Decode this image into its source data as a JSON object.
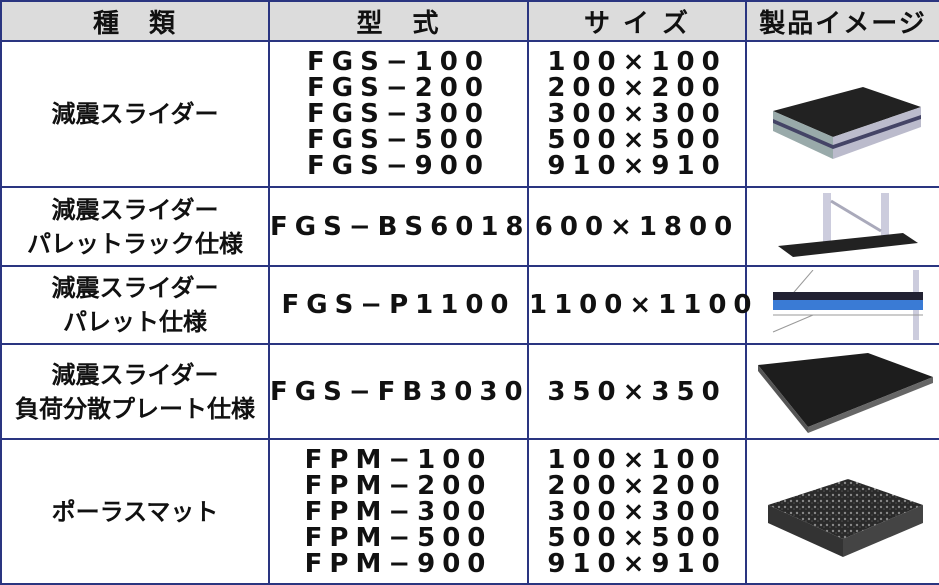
{
  "table": {
    "header": [
      "種　類",
      "型　式",
      "サ イ ズ",
      "製品イメージ"
    ],
    "rows": [
      {
        "type": [
          "減震スライダー"
        ],
        "models": [
          "FGS−100",
          "FGS−200",
          "FGS−300",
          "FGS−500",
          "FGS−900"
        ],
        "sizes": [
          "100×100",
          "200×200",
          "300×300",
          "500×500",
          "910×910"
        ]
      },
      {
        "type": [
          "減震スライダー",
          "パレットラック仕様"
        ],
        "models": [
          "FGS−BS6018"
        ],
        "sizes": [
          "600×1800"
        ]
      },
      {
        "type": [
          "減震スライダー",
          "パレット仕様"
        ],
        "models": [
          "FGS−P1100"
        ],
        "sizes": [
          "1100×1100"
        ]
      },
      {
        "type": [
          "減震スライダー",
          "負荷分散プレート仕様"
        ],
        "models": [
          "FGS−FB3030"
        ],
        "sizes": [
          "350×350"
        ]
      },
      {
        "type": [
          "ポーラスマット"
        ],
        "models": [
          "FPM−100",
          "FPM−200",
          "FPM−300",
          "FPM−500",
          "FPM−900"
        ],
        "sizes": [
          "100×100",
          "200×200",
          "300×300",
          "500×500",
          "910×910"
        ]
      }
    ]
  }
}
